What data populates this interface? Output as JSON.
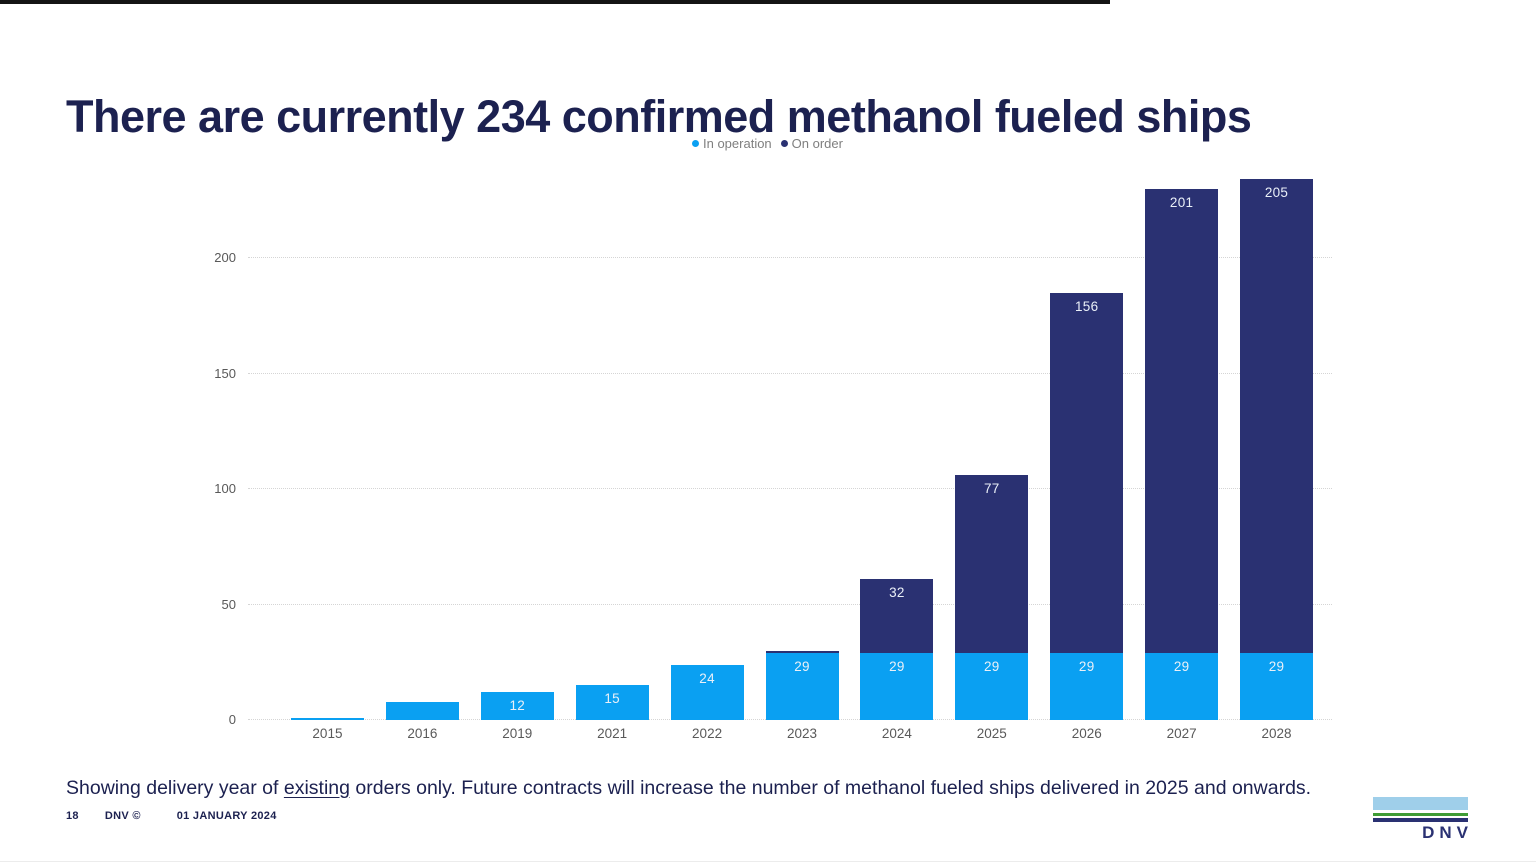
{
  "slide": {
    "title": "There are currently 234 confirmed methanol fueled ships",
    "footnote": {
      "before": "Showing delivery year of ",
      "underlined": "existing",
      "after": " orders only. Future contracts will increase the number of methanol fueled ships delivered in 2025 and onwards."
    },
    "footer": {
      "page_number": "18",
      "copyright": "DNV ©",
      "date": "01 JANUARY 2024"
    },
    "logo_text": "DNV"
  },
  "chart_data": {
    "type": "bar",
    "stacked": true,
    "title": "",
    "xlabel": "",
    "ylabel": "",
    "categories": [
      "2015",
      "2016",
      "2019",
      "2021",
      "2022",
      "2023",
      "2024",
      "2025",
      "2026",
      "2027",
      "2028"
    ],
    "series": [
      {
        "name": "In operation",
        "color": "#0aa0f2",
        "values": [
          1,
          8,
          12,
          15,
          24,
          29,
          29,
          29,
          29,
          29,
          29
        ],
        "labels": [
          "",
          "",
          "12",
          "15",
          "24",
          "29",
          "29",
          "29",
          "29",
          "29",
          "29"
        ]
      },
      {
        "name": "On order",
        "color": "#2a3172",
        "values": [
          0,
          0,
          0,
          0,
          0,
          1,
          32,
          77,
          156,
          201,
          205
        ],
        "labels": [
          "",
          "",
          "",
          "",
          "",
          "",
          "32",
          "77",
          "156",
          "201",
          "205"
        ]
      }
    ],
    "yticks": [
      0,
      50,
      100,
      150,
      200
    ],
    "ylim": [
      0,
      200
    ],
    "grid": "dotted-horizontal",
    "legend_position": "top-center",
    "bar_label_color": "#eaf0f8",
    "tick_label_color": "#595959"
  }
}
